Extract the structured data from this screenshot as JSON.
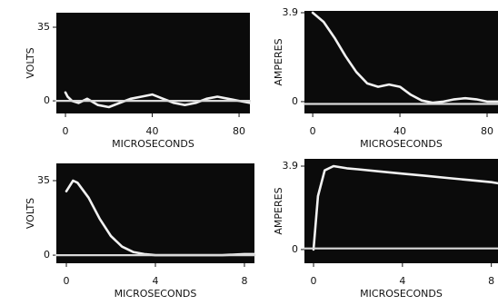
{
  "chart_data": [
    {
      "type": "line",
      "xlabel": "MICROSECONDS",
      "ylabel": "VOLTS",
      "xlim": [
        -4.2,
        85
      ],
      "ylim": [
        -6,
        41.9
      ],
      "xticks": [
        0,
        40,
        80
      ],
      "yticks": [
        0,
        35
      ],
      "series": [
        {
          "color": "#f2f2f2",
          "x": [
            0,
            1,
            3,
            6,
            10,
            15,
            20,
            25,
            30,
            35,
            40,
            45,
            50,
            55,
            60,
            65,
            70,
            75,
            80,
            85
          ],
          "values": [
            4,
            2,
            0,
            -1,
            1,
            -2,
            -3,
            -1,
            1,
            2,
            3,
            1,
            -1,
            -2,
            -1,
            1,
            2,
            1,
            0,
            -1
          ]
        },
        {
          "color": "#d9d9d9",
          "x": [
            -4.2,
            85
          ],
          "values": [
            0,
            0
          ]
        }
      ]
    },
    {
      "type": "line",
      "xlabel": "MICROSECONDS",
      "ylabel": "AMPERES",
      "xlim": [
        -3.8,
        85
      ],
      "ylim": [
        -0.52,
        3.98
      ],
      "xticks": [
        0,
        40,
        80
      ],
      "yticks": [
        0,
        3.9
      ],
      "series": [
        {
          "color": "#f2f2f2",
          "x": [
            0,
            5,
            10,
            15,
            20,
            25,
            30,
            35,
            40,
            45,
            50,
            55,
            60,
            65,
            70,
            75,
            80,
            85
          ],
          "values": [
            3.9,
            3.5,
            2.8,
            2.0,
            1.3,
            0.8,
            0.65,
            0.75,
            0.65,
            0.3,
            0.05,
            -0.05,
            0.0,
            0.1,
            0.15,
            0.1,
            0.0,
            0.0
          ]
        },
        {
          "color": "#d9d9d9",
          "x": [
            -3.8,
            85
          ],
          "values": [
            -0.1,
            -0.1
          ]
        }
      ]
    },
    {
      "type": "line",
      "xlabel": "MICROSECONDS",
      "ylabel": "VOLTS",
      "xlim": [
        -0.45,
        8.45
      ],
      "ylim": [
        -3.8,
        43.1
      ],
      "xticks": [
        0,
        4,
        8
      ],
      "yticks": [
        0,
        35
      ],
      "series": [
        {
          "color": "#f2f2f2",
          "x": [
            0,
            0.3,
            0.5,
            1,
            1.5,
            2,
            2.5,
            3,
            3.5,
            4,
            5,
            6,
            7,
            8,
            8.45
          ],
          "values": [
            30,
            35,
            34,
            27,
            17,
            9,
            4,
            1.5,
            0.5,
            0,
            0,
            0,
            0,
            0.5,
            0.5
          ]
        },
        {
          "color": "#d9d9d9",
          "x": [
            -0.45,
            8.45
          ],
          "values": [
            0,
            0
          ]
        }
      ]
    },
    {
      "type": "line",
      "xlabel": "MICROSECONDS",
      "ylabel": "AMPERES",
      "xlim": [
        -0.41,
        8.3
      ],
      "ylim": [
        -0.64,
        4.24
      ],
      "xticks": [
        0,
        4,
        8
      ],
      "yticks": [
        0,
        3.9
      ],
      "series": [
        {
          "color": "#f2f2f2",
          "x": [
            0,
            0.2,
            0.5,
            0.9,
            1.5,
            2,
            3,
            4,
            5,
            6,
            7,
            8,
            8.3
          ],
          "values": [
            0,
            2.5,
            3.7,
            3.9,
            3.8,
            3.75,
            3.65,
            3.55,
            3.45,
            3.35,
            3.25,
            3.15,
            3.1
          ]
        },
        {
          "color": "#d9d9d9",
          "x": [
            -0.41,
            8.3
          ],
          "values": [
            0.05,
            0.05
          ]
        }
      ]
    }
  ]
}
